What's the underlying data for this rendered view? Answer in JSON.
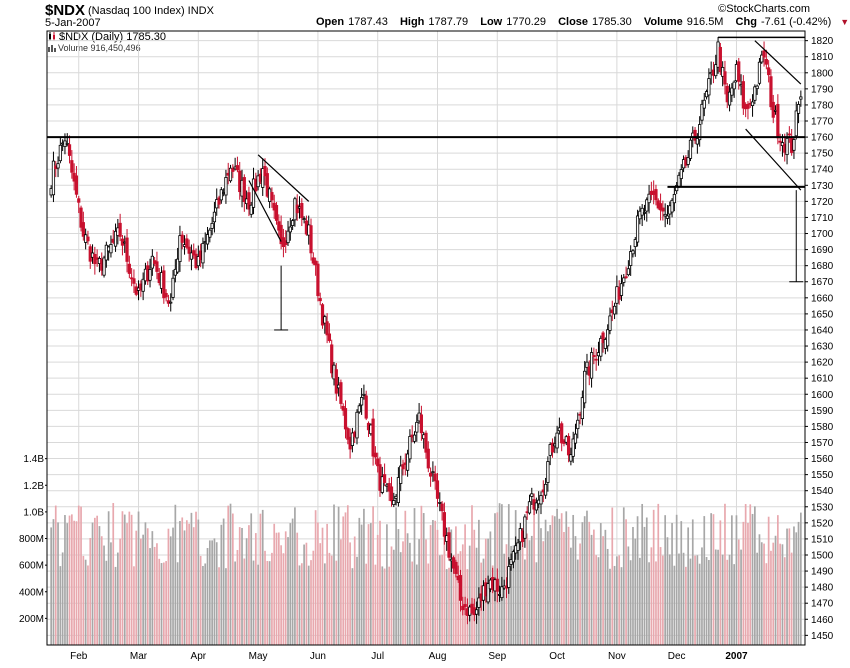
{
  "header": {
    "symbol": "$NDX",
    "symbol_desc": "(Nasdaq 100 Index)  INDX",
    "date": "5-Jan-2007",
    "brand": "©StockCharts.com",
    "open_label": "Open",
    "open": "1787.43",
    "high_label": "High",
    "high": "1787.79",
    "low_label": "Low",
    "low": "1770.29",
    "close_label": "Close",
    "close": "1785.30",
    "volume_label": "Volume",
    "volume": "916.5M",
    "chg_label": "Chg",
    "chg": "-7.61 (-0.42%)",
    "chg_arrow": "▼"
  },
  "legend": {
    "price": "$NDX (Daily) 1785.30",
    "volume": "Volume 916,450,496"
  },
  "colors": {
    "up": "#000000",
    "down": "#c8102e",
    "vol_up": "#a7a7a7",
    "vol_down": "#e8a8ae",
    "grid": "#d9d9d9"
  },
  "chart_data": {
    "type": "candlestick",
    "title": "$NDX (Daily)",
    "y_ticks": [
      1450,
      1460,
      1470,
      1480,
      1490,
      1500,
      1510,
      1520,
      1530,
      1540,
      1550,
      1560,
      1570,
      1580,
      1590,
      1600,
      1610,
      1620,
      1630,
      1640,
      1650,
      1660,
      1670,
      1680,
      1690,
      1700,
      1710,
      1720,
      1730,
      1740,
      1750,
      1760,
      1770,
      1780,
      1790,
      1800,
      1810,
      1820
    ],
    "ylim": [
      1444,
      1826
    ],
    "x_labels": [
      "Feb",
      "Mar",
      "Apr",
      "May",
      "Jun",
      "Jul",
      "Aug",
      "Sep",
      "Oct",
      "Nov",
      "Dec",
      "2007"
    ],
    "volume_ticks": [
      "200M",
      "400M",
      "600M",
      "800M",
      "1.0B",
      "1.2B",
      "1.4B"
    ],
    "volume_tick_values": [
      200,
      400,
      600,
      800,
      1000,
      1200,
      1400
    ],
    "volume_lim": [
      0,
      1450
    ],
    "close_anchors": [
      {
        "i": 0,
        "v": 1735
      },
      {
        "i": 6,
        "v": 1760
      },
      {
        "i": 14,
        "v": 1700
      },
      {
        "i": 20,
        "v": 1678
      },
      {
        "i": 30,
        "v": 1700
      },
      {
        "i": 38,
        "v": 1660
      },
      {
        "i": 44,
        "v": 1685
      },
      {
        "i": 52,
        "v": 1655
      },
      {
        "i": 56,
        "v": 1700
      },
      {
        "i": 64,
        "v": 1680
      },
      {
        "i": 72,
        "v": 1715
      },
      {
        "i": 78,
        "v": 1743
      },
      {
        "i": 86,
        "v": 1720
      },
      {
        "i": 92,
        "v": 1741
      },
      {
        "i": 100,
        "v": 1690
      },
      {
        "i": 106,
        "v": 1720
      },
      {
        "i": 112,
        "v": 1700
      },
      {
        "i": 118,
        "v": 1650
      },
      {
        "i": 124,
        "v": 1605
      },
      {
        "i": 130,
        "v": 1570
      },
      {
        "i": 136,
        "v": 1600
      },
      {
        "i": 142,
        "v": 1550
      },
      {
        "i": 148,
        "v": 1530
      },
      {
        "i": 154,
        "v": 1560
      },
      {
        "i": 160,
        "v": 1585
      },
      {
        "i": 166,
        "v": 1545
      },
      {
        "i": 172,
        "v": 1510
      },
      {
        "i": 178,
        "v": 1472
      },
      {
        "i": 184,
        "v": 1462
      },
      {
        "i": 190,
        "v": 1485
      },
      {
        "i": 196,
        "v": 1478
      },
      {
        "i": 202,
        "v": 1500
      },
      {
        "i": 208,
        "v": 1530
      },
      {
        "i": 214,
        "v": 1545
      },
      {
        "i": 220,
        "v": 1580
      },
      {
        "i": 226,
        "v": 1560
      },
      {
        "i": 232,
        "v": 1610
      },
      {
        "i": 238,
        "v": 1630
      },
      {
        "i": 244,
        "v": 1650
      },
      {
        "i": 250,
        "v": 1680
      },
      {
        "i": 256,
        "v": 1710
      },
      {
        "i": 262,
        "v": 1722
      },
      {
        "i": 268,
        "v": 1710
      },
      {
        "i": 274,
        "v": 1735
      },
      {
        "i": 280,
        "v": 1760
      },
      {
        "i": 286,
        "v": 1790
      },
      {
        "i": 290,
        "v": 1815
      },
      {
        "i": 294,
        "v": 1780
      },
      {
        "i": 298,
        "v": 1800
      },
      {
        "i": 302,
        "v": 1775
      },
      {
        "i": 306,
        "v": 1790
      },
      {
        "i": 310,
        "v": 1812
      },
      {
        "i": 314,
        "v": 1775
      },
      {
        "i": 318,
        "v": 1758
      },
      {
        "i": 322,
        "v": 1755
      },
      {
        "i": 326,
        "v": 1785
      }
    ],
    "volume_avg": 820
  }
}
